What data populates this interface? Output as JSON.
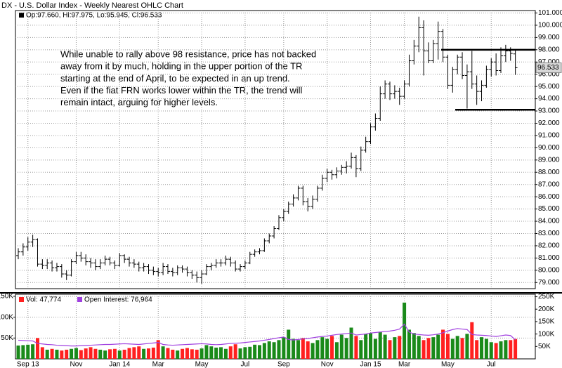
{
  "chart_data": {
    "type": "ohlc",
    "title": "DX - U.S. Dollar Index - Weekly Nearest OHLC Chart",
    "legend_text": "Op:97.660, Hi:97.975, Lo:95.945, Cl:96.533",
    "last_label": "96.533",
    "annotation": [
      "While unable to rally above 98 resistance, price has not backed",
      "away from it by much, holding in the upper portion of the TR",
      "starting at the end of April, to be expected in an up trend.",
      "Even if the fiat FRN works lower within the TR, the trend will",
      "remain intact, arguing for higher levels."
    ],
    "levels": [
      98,
      93.1
    ],
    "color": "#000000",
    "grid": true,
    "categories": [
      null,
      null,
      "Sep 13",
      null,
      null,
      null,
      null,
      null,
      null,
      null,
      null,
      null,
      "Nov",
      null,
      null,
      null,
      null,
      null,
      null,
      null,
      null,
      "Jan 14",
      null,
      null,
      null,
      null,
      null,
      null,
      null,
      "Mar",
      null,
      null,
      null,
      null,
      null,
      null,
      null,
      null,
      "May",
      null,
      null,
      null,
      null,
      null,
      null,
      null,
      null,
      "Jul",
      null,
      null,
      null,
      null,
      null,
      null,
      null,
      "Sep",
      null,
      null,
      null,
      null,
      null,
      null,
      null,
      null,
      "Nov",
      null,
      null,
      null,
      null,
      null,
      null,
      null,
      null,
      "Jan 15",
      null,
      null,
      null,
      null,
      null,
      null,
      "Mar",
      null,
      null,
      null,
      null,
      null,
      null,
      null,
      null,
      "May",
      null,
      null,
      null,
      null,
      null,
      null,
      null,
      null,
      "Jul",
      null,
      null,
      null,
      null,
      null
    ],
    "ohlc": [
      [
        81.2,
        81.8,
        80.9,
        81.5
      ],
      [
        81.5,
        82.2,
        81.2,
        81.9
      ],
      [
        81.9,
        82.7,
        81.6,
        82.3
      ],
      [
        82.3,
        82.9,
        81.9,
        82.5
      ],
      [
        82.5,
        82.6,
        80.3,
        80.5
      ],
      [
        80.5,
        80.9,
        80.1,
        80.4
      ],
      [
        80.4,
        80.9,
        80.1,
        80.6
      ],
      [
        80.6,
        80.8,
        79.9,
        80.2
      ],
      [
        80.2,
        80.6,
        79.9,
        80.3
      ],
      [
        80.3,
        80.5,
        79.4,
        79.7
      ],
      [
        79.7,
        80.0,
        79.2,
        79.6
      ],
      [
        79.6,
        80.9,
        79.5,
        80.7
      ],
      [
        80.7,
        81.5,
        80.5,
        81.2
      ],
      [
        81.2,
        81.5,
        80.7,
        81.0
      ],
      [
        81.0,
        81.3,
        80.4,
        80.7
      ],
      [
        80.7,
        81.0,
        80.2,
        80.6
      ],
      [
        80.6,
        80.9,
        80.0,
        80.3
      ],
      [
        80.3,
        80.9,
        80.1,
        80.6
      ],
      [
        80.6,
        81.2,
        80.4,
        80.9
      ],
      [
        80.9,
        81.1,
        80.4,
        80.6
      ],
      [
        80.6,
        80.8,
        80.1,
        80.4
      ],
      [
        80.4,
        81.4,
        80.3,
        81.2
      ],
      [
        81.2,
        81.3,
        80.6,
        80.9
      ],
      [
        80.9,
        81.1,
        80.3,
        80.6
      ],
      [
        80.6,
        80.9,
        80.2,
        80.5
      ],
      [
        80.5,
        80.7,
        79.9,
        80.2
      ],
      [
        80.2,
        80.6,
        79.9,
        80.3
      ],
      [
        80.3,
        80.5,
        79.7,
        80.0
      ],
      [
        80.0,
        80.3,
        79.6,
        79.9
      ],
      [
        79.9,
        80.2,
        79.5,
        79.8
      ],
      [
        79.8,
        80.6,
        79.6,
        80.3
      ],
      [
        80.3,
        80.5,
        79.7,
        79.9
      ],
      [
        79.9,
        80.2,
        79.5,
        79.8
      ],
      [
        79.8,
        80.4,
        79.6,
        80.2
      ],
      [
        80.2,
        80.4,
        79.8,
        80.1
      ],
      [
        80.1,
        80.3,
        79.5,
        79.8
      ],
      [
        79.8,
        80.0,
        79.3,
        79.6
      ],
      [
        79.6,
        79.9,
        79.0,
        79.4
      ],
      [
        79.4,
        80.0,
        78.9,
        79.7
      ],
      [
        79.7,
        80.5,
        79.6,
        80.3
      ],
      [
        80.3,
        80.6,
        80.0,
        80.4
      ],
      [
        80.4,
        80.9,
        80.2,
        80.6
      ],
      [
        80.6,
        80.9,
        80.3,
        80.6
      ],
      [
        80.6,
        81.2,
        80.4,
        80.9
      ],
      [
        80.9,
        81.1,
        80.3,
        80.6
      ],
      [
        80.6,
        80.8,
        79.9,
        80.1
      ],
      [
        80.1,
        80.5,
        79.9,
        80.3
      ],
      [
        80.3,
        80.8,
        80.1,
        80.6
      ],
      [
        80.6,
        81.5,
        80.5,
        81.3
      ],
      [
        81.3,
        81.7,
        81.1,
        81.5
      ],
      [
        81.5,
        81.8,
        81.3,
        81.6
      ],
      [
        81.6,
        82.6,
        81.5,
        82.4
      ],
      [
        82.4,
        83.0,
        82.2,
        82.8
      ],
      [
        82.8,
        83.6,
        82.6,
        83.4
      ],
      [
        83.4,
        84.5,
        83.3,
        84.3
      ],
      [
        84.3,
        85.0,
        84.0,
        84.8
      ],
      [
        84.8,
        85.6,
        84.6,
        85.4
      ],
      [
        85.4,
        86.2,
        85.2,
        85.9
      ],
      [
        85.9,
        86.9,
        85.7,
        86.7
      ],
      [
        86.7,
        86.9,
        85.3,
        85.6
      ],
      [
        85.6,
        85.9,
        84.8,
        85.2
      ],
      [
        85.2,
        86.1,
        85.0,
        85.8
      ],
      [
        85.8,
        86.9,
        85.6,
        86.7
      ],
      [
        86.7,
        87.8,
        86.5,
        87.5
      ],
      [
        87.5,
        88.3,
        87.2,
        88.0
      ],
      [
        88.0,
        88.2,
        87.4,
        87.8
      ],
      [
        87.8,
        88.4,
        87.5,
        88.1
      ],
      [
        88.1,
        88.6,
        87.8,
        88.4
      ],
      [
        88.4,
        88.9,
        87.9,
        88.5
      ],
      [
        88.5,
        89.6,
        88.3,
        89.2
      ],
      [
        89.2,
        89.4,
        87.6,
        88.3
      ],
      [
        88.3,
        90.1,
        88.1,
        89.8
      ],
      [
        89.8,
        90.9,
        89.6,
        90.5
      ],
      [
        90.5,
        92.0,
        90.3,
        91.7
      ],
      [
        91.7,
        92.8,
        91.4,
        92.4
      ],
      [
        92.4,
        95.0,
        92.2,
        94.4
      ],
      [
        94.4,
        95.5,
        94.0,
        95.2
      ],
      [
        95.2,
        95.4,
        93.9,
        94.4
      ],
      [
        94.4,
        95.1,
        94.0,
        94.6
      ],
      [
        94.6,
        94.9,
        93.5,
        94.2
      ],
      [
        94.2,
        95.5,
        94.0,
        95.2
      ],
      [
        95.2,
        97.6,
        95.0,
        97.1
      ],
      [
        97.1,
        98.8,
        96.8,
        98.3
      ],
      [
        98.3,
        100.7,
        97.8,
        99.8
      ],
      [
        99.8,
        100.4,
        95.9,
        97.9
      ],
      [
        97.9,
        98.6,
        96.9,
        97.1
      ],
      [
        97.1,
        98.8,
        96.9,
        98.5
      ],
      [
        98.5,
        100.3,
        97.2,
        99.5
      ],
      [
        99.5,
        99.7,
        97.0,
        97.4
      ],
      [
        97.4,
        97.6,
        94.8,
        95.1
      ],
      [
        95.1,
        96.6,
        94.5,
        96.4
      ],
      [
        96.4,
        97.6,
        96.0,
        97.4
      ],
      [
        97.4,
        97.8,
        95.6,
        95.9
      ],
      [
        95.9,
        96.8,
        93.2,
        96.2
      ],
      [
        96.2,
        97.9,
        94.8,
        95.2
      ],
      [
        95.2,
        95.9,
        93.5,
        94.6
      ],
      [
        94.6,
        95.5,
        93.8,
        95.1
      ],
      [
        95.1,
        96.7,
        94.9,
        96.4
      ],
      [
        96.4,
        97.3,
        95.8,
        97.0
      ],
      [
        97.0,
        97.7,
        95.9,
        96.3
      ],
      [
        96.3,
        98.2,
        96.1,
        97.5
      ],
      [
        97.5,
        98.4,
        97.0,
        97.9
      ],
      [
        97.9,
        98.2,
        97.1,
        97.7
      ],
      [
        97.66,
        97.975,
        95.945,
        96.533
      ]
    ],
    "ylim": [
      78.5,
      101.2
    ],
    "yticks": [
      {
        "value": 79,
        "label": "79.000"
      },
      {
        "value": 80,
        "label": "80.000"
      },
      {
        "value": 81,
        "label": "81.000"
      },
      {
        "value": 82,
        "label": "82.000"
      },
      {
        "value": 83,
        "label": "83.000"
      },
      {
        "value": 84,
        "label": "84.000"
      },
      {
        "value": 85,
        "label": "85.000"
      },
      {
        "value": 86,
        "label": "86.000"
      },
      {
        "value": 87,
        "label": "87.000"
      },
      {
        "value": 88,
        "label": "88.000"
      },
      {
        "value": 89,
        "label": "89.000"
      },
      {
        "value": 90,
        "label": "90.000"
      },
      {
        "value": 91,
        "label": "91.000"
      },
      {
        "value": 92,
        "label": "92.000"
      },
      {
        "value": 93,
        "label": "93.000"
      },
      {
        "value": 94,
        "label": "94.000"
      },
      {
        "value": 95,
        "label": "95.000"
      },
      {
        "value": 96,
        "label": "96.000"
      },
      {
        "value": 97,
        "label": "97.000"
      },
      {
        "value": 98,
        "label": "98.000"
      },
      {
        "value": 99,
        "label": "99.000"
      },
      {
        "value": 100,
        "label": "100.000"
      },
      {
        "value": 101,
        "label": "101.000"
      }
    ],
    "volume": {
      "name": "Vol: 47,774",
      "up_color": "#1a8a1a",
      "down_color": "#ff2020",
      "values": [
        32000,
        33000,
        34000,
        35000,
        50000,
        28000,
        22000,
        24000,
        22000,
        20000,
        22000,
        24000,
        26000,
        21000,
        25000,
        28000,
        24000,
        22000,
        20000,
        23000,
        24000,
        20000,
        22000,
        26000,
        28000,
        30000,
        24000,
        25000,
        27000,
        45000,
        30000,
        26000,
        22000,
        20000,
        24000,
        26000,
        23000,
        22000,
        25000,
        33000,
        30000,
        27000,
        28000,
        24000,
        30000,
        35000,
        25000,
        28000,
        29000,
        34000,
        33000,
        38000,
        42000,
        40000,
        45000,
        52000,
        70000,
        48000,
        45000,
        50000,
        42000,
        38000,
        45000,
        52000,
        48000,
        55000,
        40000,
        58000,
        50000,
        75000,
        55000,
        45000,
        60000,
        62000,
        48000,
        65000,
        58000,
        45000,
        52000,
        55000,
        135000,
        70000,
        62000,
        55000,
        45000,
        50000,
        52000,
        58000,
        70000,
        60000,
        48000,
        55000,
        50000,
        60000,
        88000,
        45000,
        52000,
        48000,
        40000,
        38000,
        42000,
        45000,
        45000,
        47774
      ],
      "ylim": [
        0,
        155000
      ],
      "yticks": [
        {
          "value": 50000,
          "label": "50K"
        },
        {
          "value": 100000,
          "label": "100K"
        },
        {
          "value": 150000,
          "label": "150K"
        }
      ]
    },
    "open_interest": {
      "name": "Open Interest: 76,964",
      "color": "#a040e0",
      "values": [
        75000,
        74000,
        73000,
        72000,
        62000,
        60000,
        58000,
        57000,
        55000,
        54000,
        53000,
        52000,
        52000,
        53000,
        54000,
        55000,
        56000,
        57000,
        58000,
        58000,
        59000,
        60000,
        61000,
        60000,
        59000,
        58000,
        60000,
        62000,
        64000,
        66000,
        58000,
        56000,
        55000,
        56000,
        57000,
        58000,
        59000,
        60000,
        61000,
        60000,
        58000,
        57000,
        58000,
        60000,
        62000,
        63000,
        64000,
        66000,
        68000,
        70000,
        72000,
        75000,
        78000,
        82000,
        85000,
        88000,
        78000,
        76000,
        78000,
        80000,
        82000,
        85000,
        88000,
        90000,
        92000,
        95000,
        98000,
        100000,
        102000,
        104000,
        96000,
        98000,
        100000,
        104000,
        106000,
        108000,
        110000,
        112000,
        115000,
        120000,
        140000,
        108000,
        100000,
        98000,
        96000,
        95000,
        97000,
        100000,
        105000,
        112000,
        118000,
        122000,
        120000,
        118000,
        98000,
        96000,
        95000,
        94000,
        92000,
        90000,
        93000,
        96000,
        94000,
        76964
      ],
      "ylim": [
        0,
        260000
      ],
      "yticks": [
        {
          "value": 50000,
          "label": "50K"
        },
        {
          "value": 100000,
          "label": "100K"
        },
        {
          "value": 150000,
          "label": "150K"
        },
        {
          "value": 200000,
          "label": "200K"
        },
        {
          "value": 250000,
          "label": "250K"
        }
      ]
    }
  }
}
